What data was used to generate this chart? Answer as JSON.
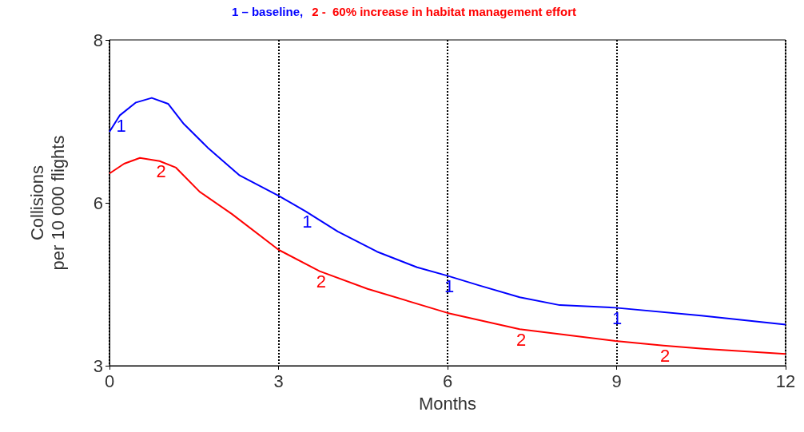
{
  "chart_data": {
    "type": "line",
    "xlabel": "Months",
    "ylabel": "Collisions\nper 10 000 flights",
    "xlim": [
      0,
      12
    ],
    "xticks": [
      0,
      3,
      6,
      9,
      12
    ],
    "ylim": [
      3,
      8
    ],
    "yticks": [
      3,
      {
        "value": 5.5,
        "label": "6"
      },
      8
    ],
    "grid": "x",
    "legend": "top",
    "marker": "none",
    "line_style": "solid",
    "series": [
      {
        "name": "1 – baseline,",
        "color": "#0000ff",
        "x": [
          0,
          0.18,
          0.47,
          0.75,
          1.04,
          1.32,
          1.74,
          2.31,
          3,
          3.48,
          4.05,
          4.75,
          5.46,
          6,
          6.57,
          7.28,
          7.99,
          8.98,
          10.5,
          12
        ],
        "values": [
          6.59,
          6.84,
          7.04,
          7.11,
          7.02,
          6.71,
          6.35,
          5.92,
          5.61,
          5.37,
          5.06,
          4.75,
          4.51,
          4.38,
          4.23,
          4.05,
          3.93,
          3.89,
          3.77,
          3.63
        ]
      },
      {
        "name": "2 -  60% increase in habitat management effort",
        "color": "#ff0000",
        "x": [
          0,
          0.26,
          0.54,
          0.89,
          1.18,
          1.6,
          2.17,
          3,
          3.73,
          4.58,
          6,
          7.28,
          8.98,
          9.83,
          10.54,
          12
        ],
        "values": [
          5.95,
          6.1,
          6.19,
          6.14,
          6.04,
          5.67,
          5.33,
          4.78,
          4.45,
          4.18,
          3.81,
          3.56,
          3.38,
          3.31,
          3.26,
          3.18
        ]
      }
    ],
    "annotations": [
      {
        "text": "1",
        "x": 0.18,
        "y": 6.84
      },
      {
        "text": "1",
        "x": 3.48,
        "y": 5.37
      },
      {
        "text": "1",
        "x": 6,
        "y": 4.38
      },
      {
        "text": "1",
        "x": 8.98,
        "y": 3.89
      },
      {
        "text": "2",
        "x": 0.89,
        "y": 6.14
      },
      {
        "text": "2",
        "x": 3.73,
        "y": 4.45
      },
      {
        "text": "2",
        "x": 7.28,
        "y": 3.56
      },
      {
        "text": "2",
        "x": 9.83,
        "y": 3.31
      }
    ]
  }
}
